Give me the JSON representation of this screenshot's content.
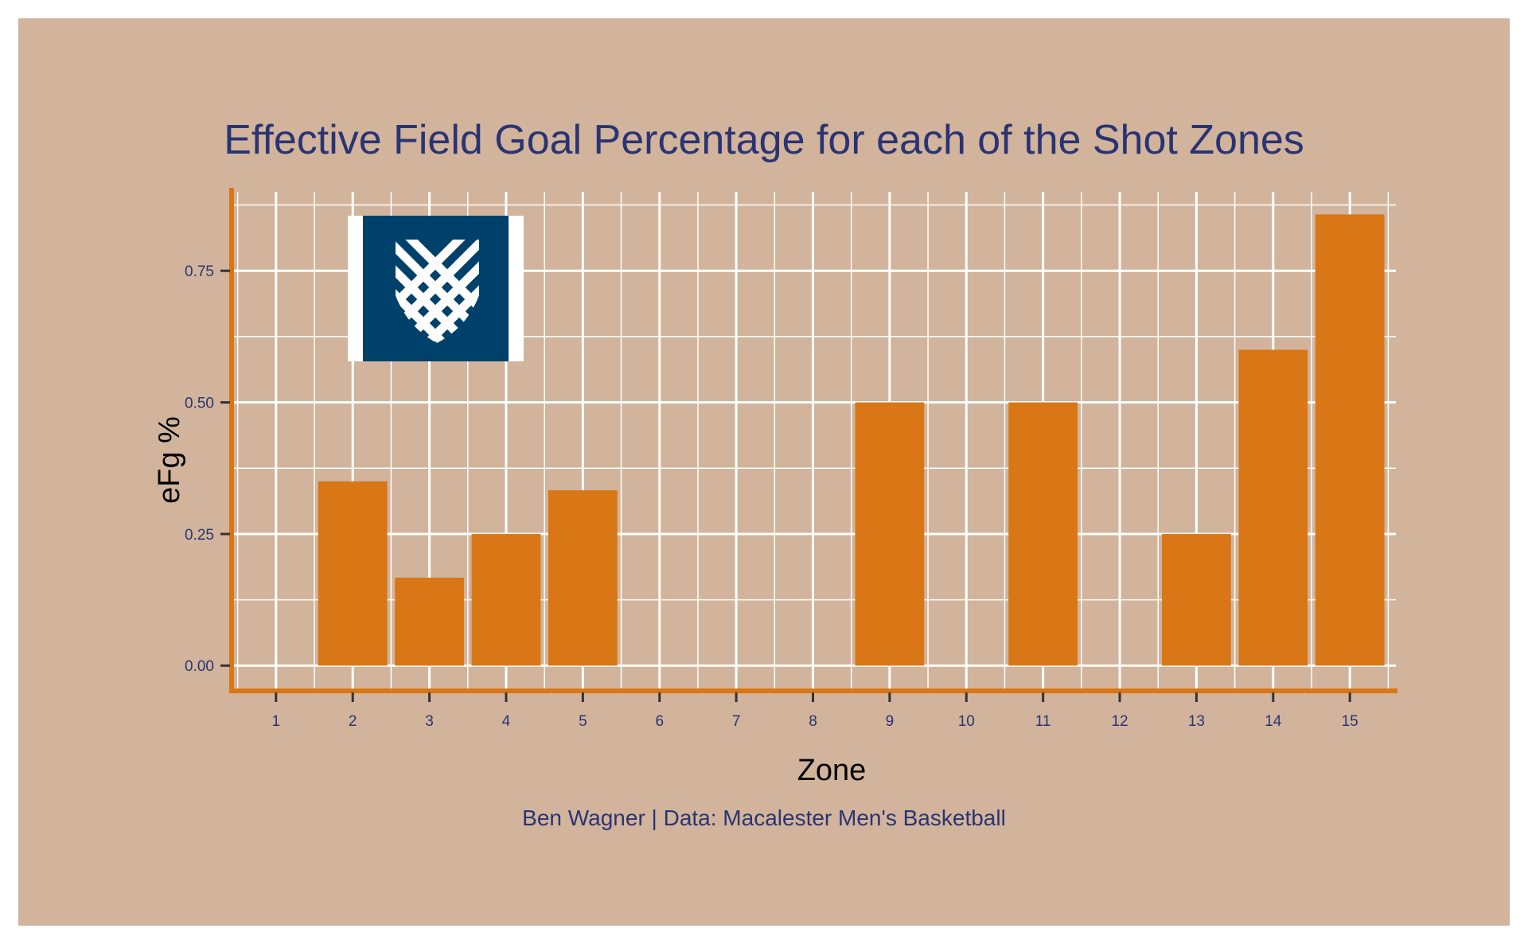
{
  "chart_data": {
    "type": "bar",
    "title": "Effective Field Goal Percentage for each of the Shot Zones",
    "caption": "Ben Wagner | Data: Macalester Men's Basketball",
    "xlabel": "Zone",
    "ylabel": "eFg %",
    "categories": [
      "1",
      "2",
      "3",
      "4",
      "5",
      "6",
      "7",
      "8",
      "9",
      "10",
      "11",
      "12",
      "13",
      "14",
      "15"
    ],
    "values": [
      null,
      0.35,
      0.167,
      0.25,
      0.333,
      null,
      null,
      null,
      0.5,
      null,
      0.5,
      null,
      0.25,
      0.6,
      0.857
    ],
    "y_ticks": [
      "0.00",
      "0.25",
      "0.50",
      "0.75"
    ],
    "y_tick_values": [
      0,
      0.25,
      0.5,
      0.75
    ],
    "ylim": [
      -0.045,
      0.9
    ],
    "grid": true,
    "legend": "none",
    "colors": {
      "background": "#d1b49b",
      "bar": "#d97615",
      "axis_line": "#d97615",
      "grid": "#ffffff",
      "title": "#2a3474",
      "logo": "#00416b"
    },
    "logo": {
      "icon": "macalester-shield-logo"
    }
  }
}
